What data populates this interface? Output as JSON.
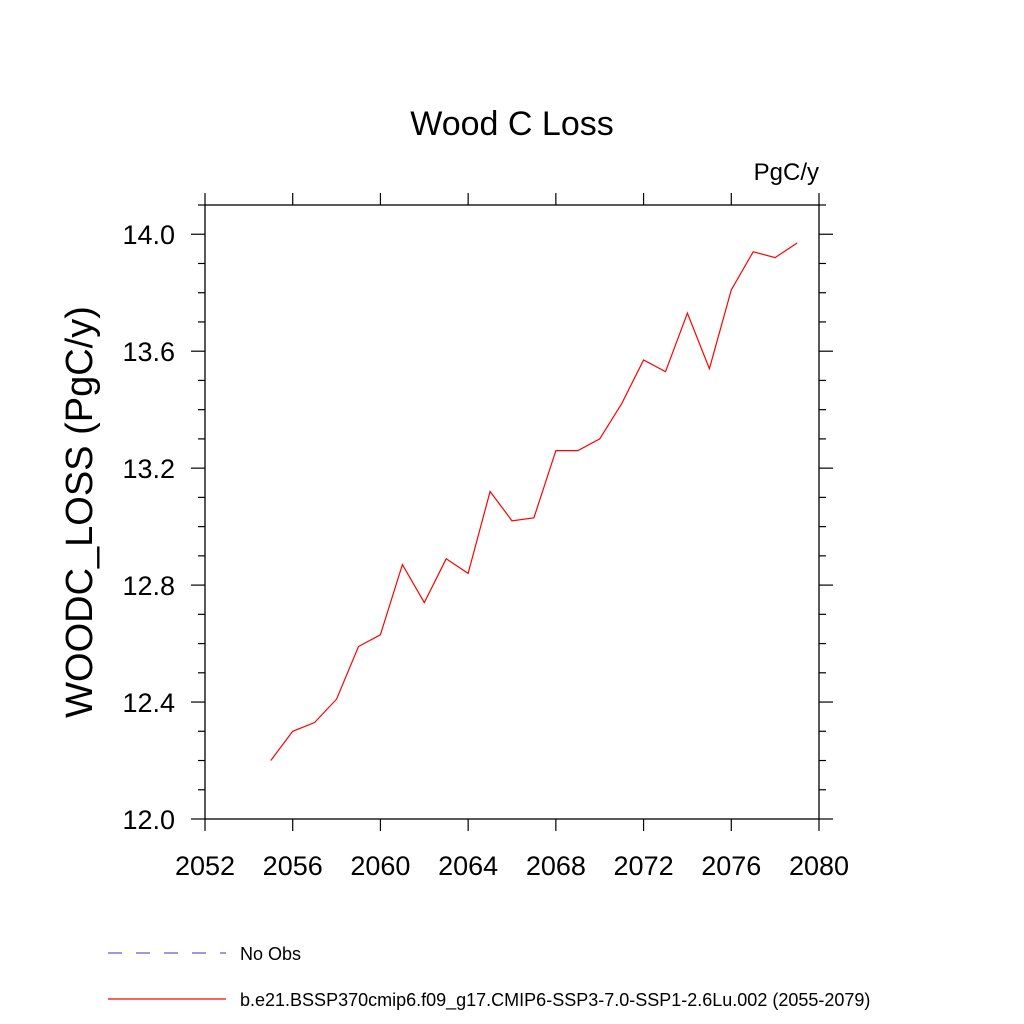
{
  "chart_data": {
    "type": "line",
    "title": "Wood C Loss",
    "units_label": "PgC/y",
    "ylabel": "WOODC_LOSS  (PgC/y)",
    "xlabel": "",
    "xlim": [
      2052,
      2080
    ],
    "ylim": [
      12.0,
      14.1
    ],
    "x_ticks": [
      2052,
      2056,
      2060,
      2064,
      2068,
      2072,
      2076,
      2080
    ],
    "x_tick_labels": [
      "2052",
      "2056",
      "2060",
      "2064",
      "2068",
      "2072",
      "2076",
      "2080"
    ],
    "y_ticks": [
      12.0,
      12.4,
      12.8,
      13.2,
      13.6,
      14.0
    ],
    "y_tick_labels": [
      "12.0",
      "12.4",
      "12.8",
      "13.2",
      "13.6",
      "14.0"
    ],
    "grid": false,
    "legend_position": "bottom",
    "series": [
      {
        "name": "b.e21.BSSP370cmip6.f09_g17.CMIP6-SSP3-7.0-SSP1-2.6Lu.002 (2055-2079)",
        "color": "#ff0000",
        "x": [
          2055,
          2056,
          2057,
          2058,
          2059,
          2060,
          2061,
          2062,
          2063,
          2064,
          2065,
          2066,
          2067,
          2068,
          2069,
          2070,
          2071,
          2072,
          2073,
          2074,
          2075,
          2076,
          2077,
          2078,
          2079
        ],
        "values": [
          12.2,
          12.3,
          12.33,
          12.41,
          12.59,
          12.63,
          12.87,
          12.74,
          12.89,
          12.84,
          13.12,
          13.02,
          13.03,
          13.26,
          13.26,
          13.3,
          13.42,
          13.57,
          13.53,
          13.73,
          13.54,
          13.81,
          13.94,
          13.92,
          13.97
        ]
      }
    ],
    "legend": [
      {
        "label": "No Obs",
        "color": "#6a5acd",
        "dash": "dashed"
      },
      {
        "label": "b.e21.BSSP370cmip6.f09_g17.CMIP6-SSP3-7.0-SSP1-2.6Lu.002 (2055-2079)",
        "color": "#ff0000",
        "dash": "solid"
      }
    ]
  }
}
